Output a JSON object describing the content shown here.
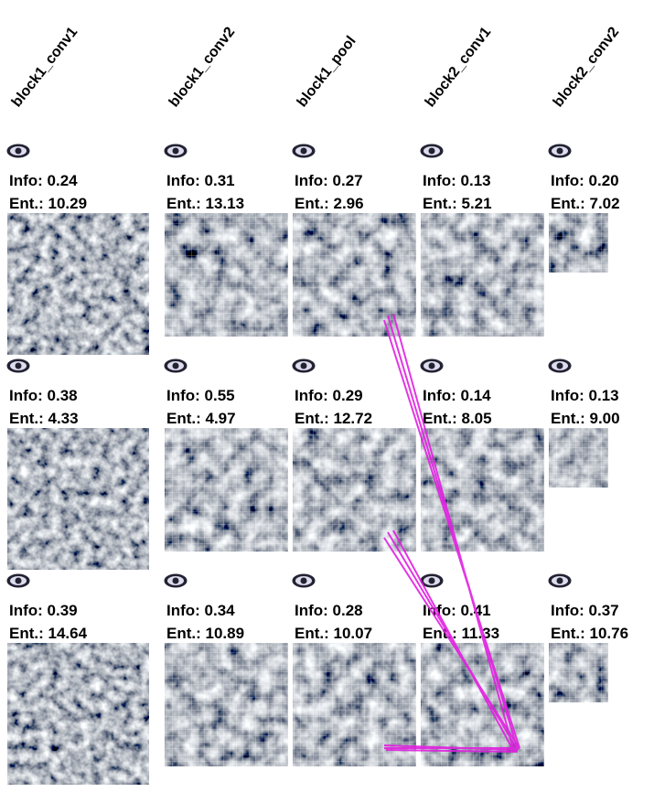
{
  "columns": [
    {
      "header": "block1_conv1",
      "cells": [
        {
          "info": "Info: 0.24",
          "ent": "Ent.: 10.29"
        },
        {
          "info": "Info: 0.38",
          "ent": "Ent.: 4.33"
        },
        {
          "info": "Info: 0.39",
          "ent": "Ent.: 14.64"
        }
      ]
    },
    {
      "header": "block1_conv2",
      "cells": [
        {
          "info": "Info: 0.31",
          "ent": "Ent.: 13.13"
        },
        {
          "info": "Info: 0.55",
          "ent": "Ent.: 4.97"
        },
        {
          "info": "Info: 0.34",
          "ent": "Ent.: 10.89"
        }
      ]
    },
    {
      "header": "block1_pool",
      "cells": [
        {
          "info": "Info: 0.27",
          "ent": "Ent.: 2.96"
        },
        {
          "info": "Info: 0.29",
          "ent": "Ent.: 12.72"
        },
        {
          "info": "Info: 0.28",
          "ent": "Ent.: 10.07"
        }
      ]
    },
    {
      "header": "block2_conv1",
      "cells": [
        {
          "info": "Info: 0.13",
          "ent": "Ent.: 5.21"
        },
        {
          "info": "Info: 0.14",
          "ent": "Ent.: 8.05"
        },
        {
          "info": "Info: 0.41",
          "ent": "Ent.: 11.33"
        }
      ]
    },
    {
      "header": "block2_conv2",
      "cells": [
        {
          "info": "Info: 0.20",
          "ent": "Ent.: 7.02"
        },
        {
          "info": "Info: 0.13",
          "ent": "Ent.: 9.00"
        },
        {
          "info": "Info: 0.37",
          "ent": "Ent.: 10.76"
        }
      ]
    }
  ]
}
